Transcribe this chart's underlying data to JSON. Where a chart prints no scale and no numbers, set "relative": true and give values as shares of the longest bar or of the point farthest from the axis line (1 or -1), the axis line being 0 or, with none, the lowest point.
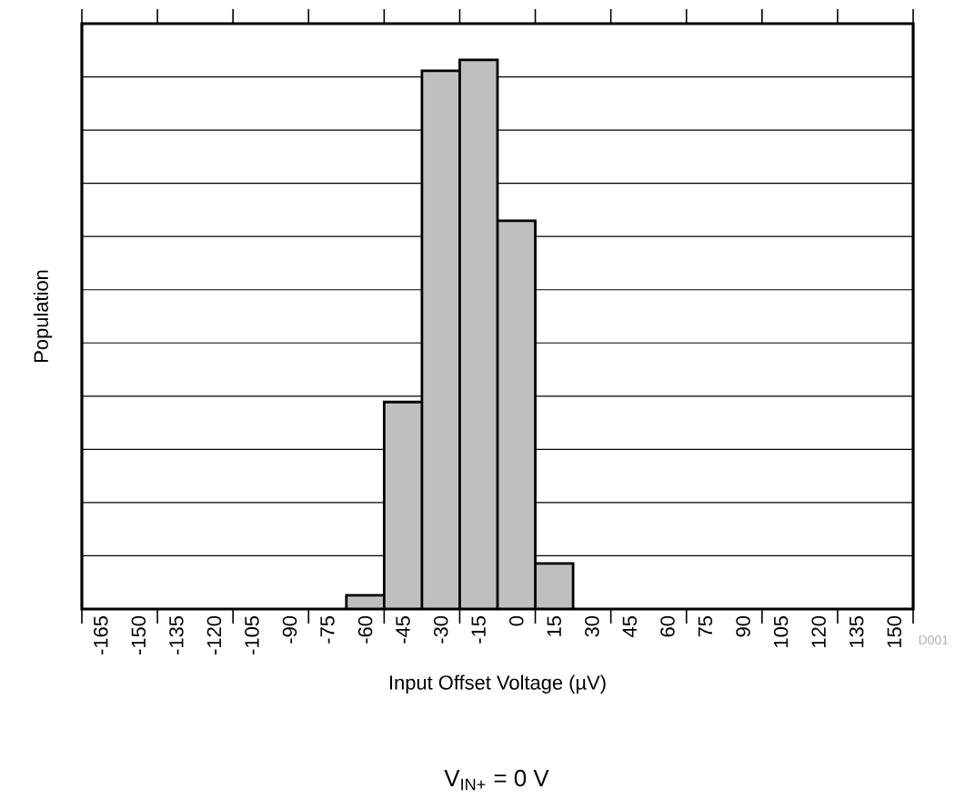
{
  "chart_data": {
    "type": "bar",
    "xlabel": "Input Offset Voltage (µV)",
    "ylabel": "Population",
    "categories": [
      "-165",
      "-150",
      "-135",
      "-120",
      "-105",
      "-90",
      "-75",
      "-60",
      "-45",
      "-30",
      "-15",
      "0",
      "15",
      "30",
      "45",
      "60",
      "75",
      "90",
      "105",
      "120",
      "135",
      "150"
    ],
    "values": [
      0,
      0,
      0,
      0,
      0,
      0,
      0,
      0.025,
      0.377,
      0.98,
      1,
      0.707,
      0.083,
      0,
      0,
      0,
      0,
      0,
      0,
      0,
      0,
      0
    ],
    "color": "#bfbfbf",
    "relative": true,
    "grid": "y",
    "annotations": [
      "D001",
      "V$_{IN+}$ = 0 V"
    ]
  }
}
